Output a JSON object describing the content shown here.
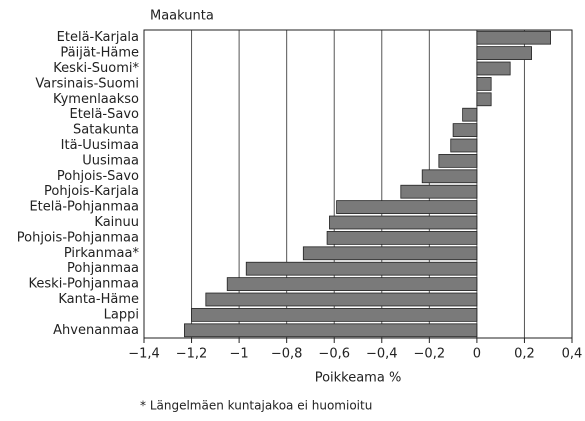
{
  "chart_data": {
    "type": "bar",
    "orientation": "horizontal",
    "title": "Maakunta",
    "x_label": "Poikkeama %",
    "footnote": "* Längelmäen kuntajakoa ei huomioitu",
    "categories": [
      "Etelä-Karjala",
      "Päijät-Häme",
      "Keski-Suomi*",
      "Varsinais-Suomi",
      "Kymenlaakso",
      "Etelä-Savo",
      "Satakunta",
      "Itä-Uusimaa",
      "Uusimaa",
      "Pohjois-Savo",
      "Pohjois-Karjala",
      "Etelä-Pohjanmaa",
      "Kainuu",
      "Pohjois-Pohjanmaa",
      "Pirkanmaa*",
      "Pohjanmaa",
      "Keski-Pohjanmaa",
      "Kanta-Häme",
      "Lappi",
      "Ahvenanmaa"
    ],
    "values": [
      0.31,
      0.23,
      0.14,
      0.06,
      0.06,
      -0.06,
      -0.1,
      -0.11,
      -0.16,
      -0.23,
      -0.32,
      -0.59,
      -0.62,
      -0.63,
      -0.73,
      -0.97,
      -1.05,
      -1.14,
      -1.2,
      -1.23
    ],
    "color": "#7a7a7a",
    "xlim": [
      -1.4,
      0.4
    ],
    "xticks": [
      {
        "value": -1.4,
        "label": "−1,4"
      },
      {
        "value": -1.2,
        "label": "−1,2"
      },
      {
        "value": -1,
        "label": "−1"
      },
      {
        "value": -0.8,
        "label": "−0,8"
      },
      {
        "value": -0.6,
        "label": "−0,6"
      },
      {
        "value": -0.4,
        "label": "−0,4"
      },
      {
        "value": -0.2,
        "label": "−0,2"
      },
      0,
      {
        "value": 0.2,
        "label": "0,2"
      },
      {
        "value": 0.4,
        "label": "0,4"
      }
    ],
    "grid": true
  }
}
